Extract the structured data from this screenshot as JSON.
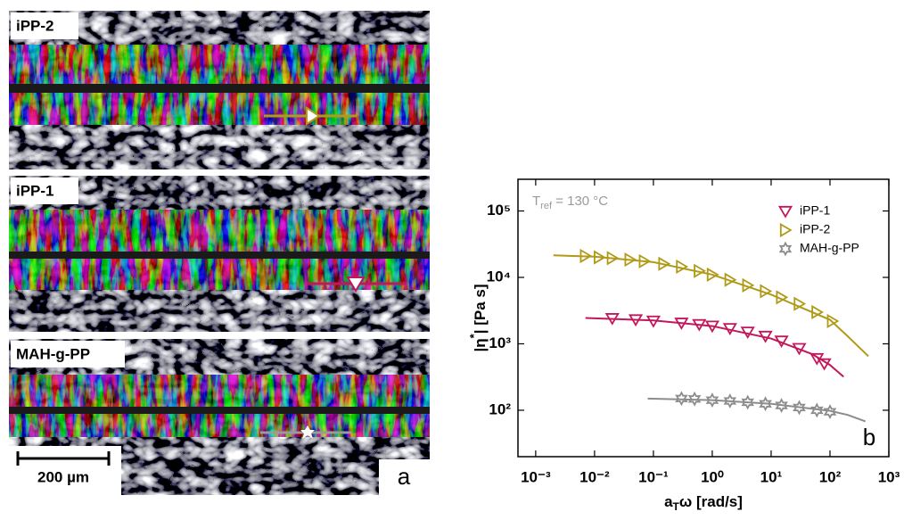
{
  "figure": {
    "images": [
      "iPP-2",
      "iPP-1",
      "MAH-g-PP"
    ],
    "scale_bar": "200 µm",
    "panel_label": "a"
  },
  "chart_data": {
    "type": "line",
    "panel_label": "b",
    "annotation": {
      "main": "T",
      "sub": "ref",
      "rest": " = 130 °C"
    },
    "xlabel": {
      "main": "a",
      "sub": "T",
      "rest": "ω [rad/s]"
    },
    "ylabel": {
      "pre": "|η",
      "sup": "*",
      "rest": "| [Pa s]"
    },
    "xscale": "log",
    "yscale": "log",
    "legend": "upper right",
    "xlim": [
      0.0005,
      1000
    ],
    "ylim": [
      20,
      300000
    ],
    "xticks": [
      {
        "value": 0.001,
        "label": "10⁻³"
      },
      {
        "value": 0.01,
        "label": "10⁻²"
      },
      {
        "value": 0.1,
        "label": "10⁻¹"
      },
      {
        "value": 1,
        "label": "10⁰"
      },
      {
        "value": 10,
        "label": "10¹"
      },
      {
        "value": 100,
        "label": "10²"
      },
      {
        "value": 1000,
        "label": "10³"
      }
    ],
    "yticks": [
      {
        "value": 100,
        "label": "10²"
      },
      {
        "value": 1000,
        "label": "10³"
      },
      {
        "value": 10000,
        "label": "10⁴"
      },
      {
        "value": 100000,
        "label": "10⁵"
      }
    ],
    "series": [
      {
        "name": "iPP-1",
        "color": "#c2185b",
        "marker": "down",
        "x": [
          0.02,
          0.05,
          0.1,
          0.3,
          0.6,
          1,
          2,
          4,
          8,
          15,
          30,
          60,
          80
        ],
        "values": [
          2400,
          2300,
          2200,
          2050,
          1950,
          1850,
          1700,
          1500,
          1300,
          1100,
          850,
          600,
          500
        ]
      },
      {
        "name": "iPP-2",
        "color": "#b09a18",
        "marker": "right",
        "x": [
          0.007,
          0.012,
          0.02,
          0.04,
          0.07,
          0.15,
          0.3,
          0.6,
          1,
          2,
          4,
          8,
          15,
          30,
          60,
          110
        ],
        "values": [
          21000,
          20000,
          19500,
          18500,
          17500,
          16000,
          14500,
          12500,
          11000,
          9200,
          7600,
          6200,
          5000,
          4000,
          3000,
          2200
        ]
      },
      {
        "name": "MAH-g-PP",
        "color": "#8c8c8c",
        "marker": "star",
        "x": [
          0.3,
          0.5,
          1,
          2,
          4,
          8,
          15,
          30,
          60,
          100
        ],
        "values": [
          150,
          148,
          142,
          138,
          132,
          125,
          118,
          110,
          100,
          95
        ]
      }
    ],
    "fits": [
      {
        "color": "#c2185b",
        "x": [
          0.007,
          0.1,
          1,
          10,
          50,
          100,
          170
        ],
        "values": [
          2450,
          2250,
          1850,
          1200,
          700,
          480,
          320
        ]
      },
      {
        "color": "#b09a18",
        "x": [
          0.002,
          0.01,
          0.1,
          1,
          10,
          100,
          200,
          450
        ],
        "values": [
          21500,
          20500,
          17000,
          11000,
          5500,
          2300,
          1300,
          650
        ]
      },
      {
        "color": "#8c8c8c",
        "x": [
          0.08,
          1,
          10,
          100,
          200,
          400
        ],
        "values": [
          150,
          142,
          125,
          98,
          85,
          68
        ]
      }
    ]
  }
}
